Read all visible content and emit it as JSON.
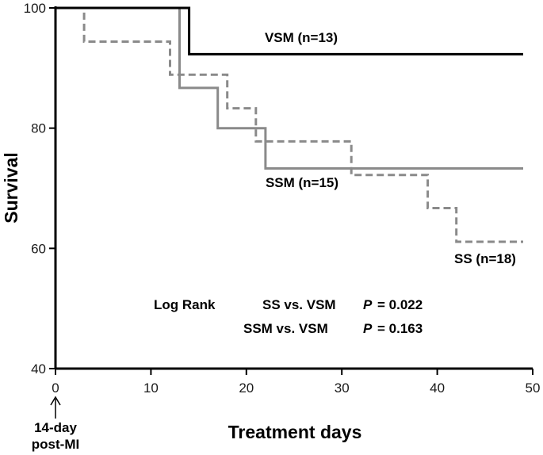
{
  "chart_data": {
    "type": "line",
    "step": true,
    "xlabel": "Treatment days",
    "ylabel": "Survival",
    "xlim": [
      0,
      50
    ],
    "ylim": [
      40,
      100
    ],
    "xticks": [
      0,
      10,
      20,
      30,
      40,
      50
    ],
    "yticks": [
      40,
      60,
      80,
      100
    ],
    "x_annotation": [
      "14-day",
      "post-MI"
    ],
    "series": [
      {
        "name": "VSM (n=13)",
        "color": "#000000",
        "style": "solid",
        "points": [
          [
            0,
            100
          ],
          [
            14,
            100
          ],
          [
            14,
            92.3
          ],
          [
            49,
            92.3
          ]
        ]
      },
      {
        "name": "SSM (n=15)",
        "color": "#8a8a8a",
        "style": "solid",
        "points": [
          [
            0,
            100
          ],
          [
            13,
            100
          ],
          [
            13,
            86.7
          ],
          [
            17,
            86.7
          ],
          [
            17,
            80
          ],
          [
            22,
            80
          ],
          [
            22,
            73.3
          ],
          [
            49,
            73.3
          ]
        ]
      },
      {
        "name": "SS (n=18)",
        "color": "#8a8a8a",
        "style": "dashed",
        "points": [
          [
            0,
            100
          ],
          [
            3,
            100
          ],
          [
            3,
            94.4
          ],
          [
            12,
            94.4
          ],
          [
            12,
            88.9
          ],
          [
            18,
            88.9
          ],
          [
            18,
            83.3
          ],
          [
            21,
            83.3
          ],
          [
            21,
            77.8
          ],
          [
            31,
            77.8
          ],
          [
            31,
            72.2
          ],
          [
            39,
            72.2
          ],
          [
            39,
            66.7
          ],
          [
            42,
            66.7
          ],
          [
            42,
            61.1
          ],
          [
            49,
            61.1
          ]
        ]
      }
    ],
    "annotations": {
      "test_label": "Log Rank",
      "comparisons": [
        {
          "pair": "SS vs. VSM",
          "p_label": "P",
          "p_value": "= 0.022"
        },
        {
          "pair": "SSM vs. VSM",
          "p_label": "P",
          "p_value": "= 0.163"
        }
      ]
    }
  }
}
